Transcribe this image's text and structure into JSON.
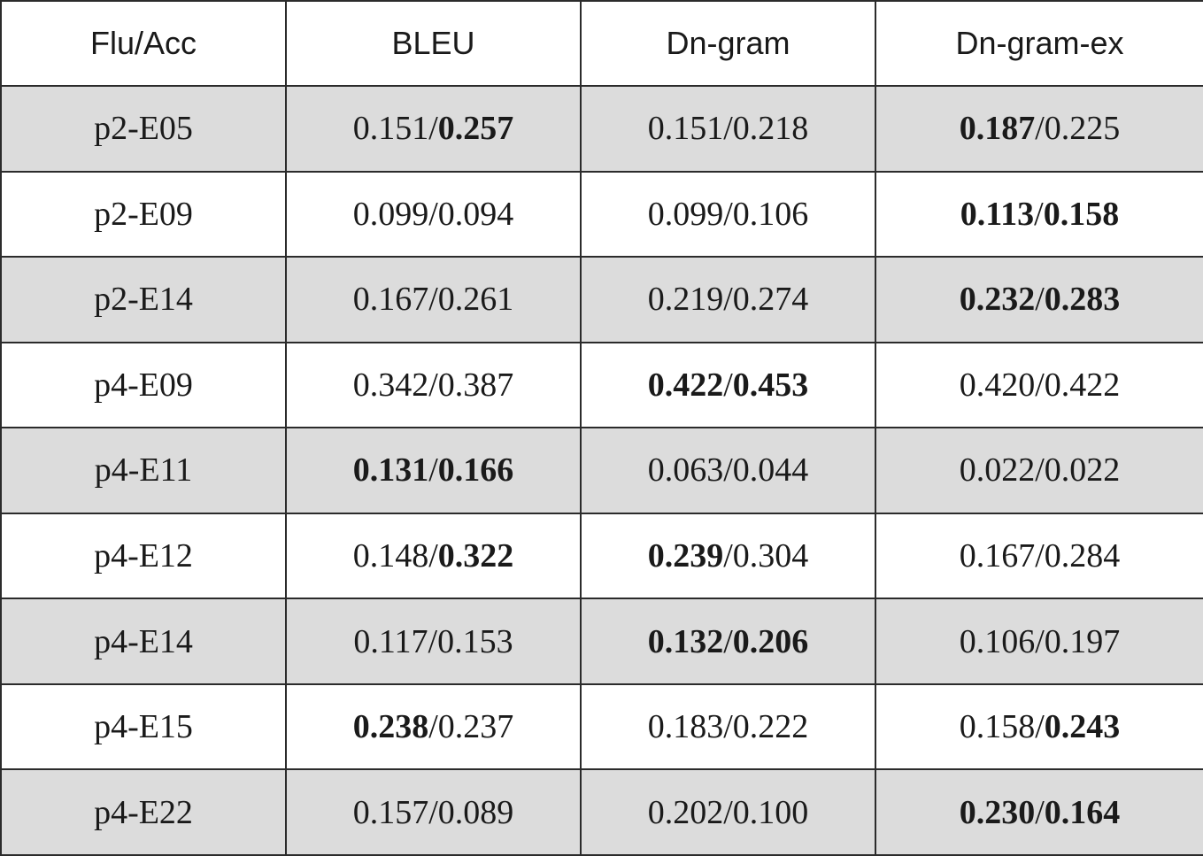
{
  "table": {
    "headers": [
      "Flu/Acc",
      "BLEU",
      "Dn-gram",
      "Dn-gram-ex"
    ],
    "rows": [
      {
        "label": "p2-E05",
        "cells": [
          {
            "flu": "0.151",
            "acc": "0.257",
            "flu_bold": false,
            "acc_bold": true
          },
          {
            "flu": "0.151",
            "acc": "0.218",
            "flu_bold": false,
            "acc_bold": false
          },
          {
            "flu": "0.187",
            "acc": "0.225",
            "flu_bold": true,
            "acc_bold": false
          }
        ]
      },
      {
        "label": "p2-E09",
        "cells": [
          {
            "flu": "0.099",
            "acc": "0.094",
            "flu_bold": false,
            "acc_bold": false
          },
          {
            "flu": "0.099",
            "acc": "0.106",
            "flu_bold": false,
            "acc_bold": false
          },
          {
            "flu": "0.113",
            "acc": "0.158",
            "flu_bold": true,
            "acc_bold": true
          }
        ]
      },
      {
        "label": "p2-E14",
        "cells": [
          {
            "flu": "0.167",
            "acc": "0.261",
            "flu_bold": false,
            "acc_bold": false
          },
          {
            "flu": "0.219",
            "acc": "0.274",
            "flu_bold": false,
            "acc_bold": false
          },
          {
            "flu": "0.232",
            "acc": "0.283",
            "flu_bold": true,
            "acc_bold": true
          }
        ]
      },
      {
        "label": "p4-E09",
        "cells": [
          {
            "flu": "0.342",
            "acc": "0.387",
            "flu_bold": false,
            "acc_bold": false
          },
          {
            "flu": "0.422",
            "acc": "0.453",
            "flu_bold": true,
            "acc_bold": true
          },
          {
            "flu": "0.420",
            "acc": "0.422",
            "flu_bold": false,
            "acc_bold": false
          }
        ]
      },
      {
        "label": "p4-E11",
        "cells": [
          {
            "flu": "0.131",
            "acc": "0.166",
            "flu_bold": true,
            "acc_bold": true
          },
          {
            "flu": "0.063",
            "acc": "0.044",
            "flu_bold": false,
            "acc_bold": false
          },
          {
            "flu": "0.022",
            "acc": "0.022",
            "flu_bold": false,
            "acc_bold": false
          }
        ]
      },
      {
        "label": "p4-E12",
        "cells": [
          {
            "flu": "0.148",
            "acc": "0.322",
            "flu_bold": false,
            "acc_bold": true
          },
          {
            "flu": "0.239",
            "acc": "0.304",
            "flu_bold": true,
            "acc_bold": false
          },
          {
            "flu": "0.167",
            "acc": "0.284",
            "flu_bold": false,
            "acc_bold": false
          }
        ]
      },
      {
        "label": "p4-E14",
        "cells": [
          {
            "flu": "0.117",
            "acc": "0.153",
            "flu_bold": false,
            "acc_bold": false
          },
          {
            "flu": "0.132",
            "acc": "0.206",
            "flu_bold": true,
            "acc_bold": true
          },
          {
            "flu": "0.106",
            "acc": "0.197",
            "flu_bold": false,
            "acc_bold": false
          }
        ]
      },
      {
        "label": "p4-E15",
        "cells": [
          {
            "flu": "0.238",
            "acc": "0.237",
            "flu_bold": true,
            "acc_bold": false
          },
          {
            "flu": "0.183",
            "acc": "0.222",
            "flu_bold": false,
            "acc_bold": false
          },
          {
            "flu": "0.158",
            "acc": "0.243",
            "flu_bold": false,
            "acc_bold": true
          }
        ]
      },
      {
        "label": "p4-E22",
        "cells": [
          {
            "flu": "0.157",
            "acc": "0.089",
            "flu_bold": false,
            "acc_bold": false
          },
          {
            "flu": "0.202",
            "acc": "0.100",
            "flu_bold": false,
            "acc_bold": false
          },
          {
            "flu": "0.230",
            "acc": "0.164",
            "flu_bold": true,
            "acc_bold": true
          }
        ]
      }
    ],
    "colors": {
      "shaded_row": "#dcdcdc",
      "plain_row": "#ffffff",
      "border": "#2b2b2b",
      "text": "#1a1a1a"
    }
  }
}
